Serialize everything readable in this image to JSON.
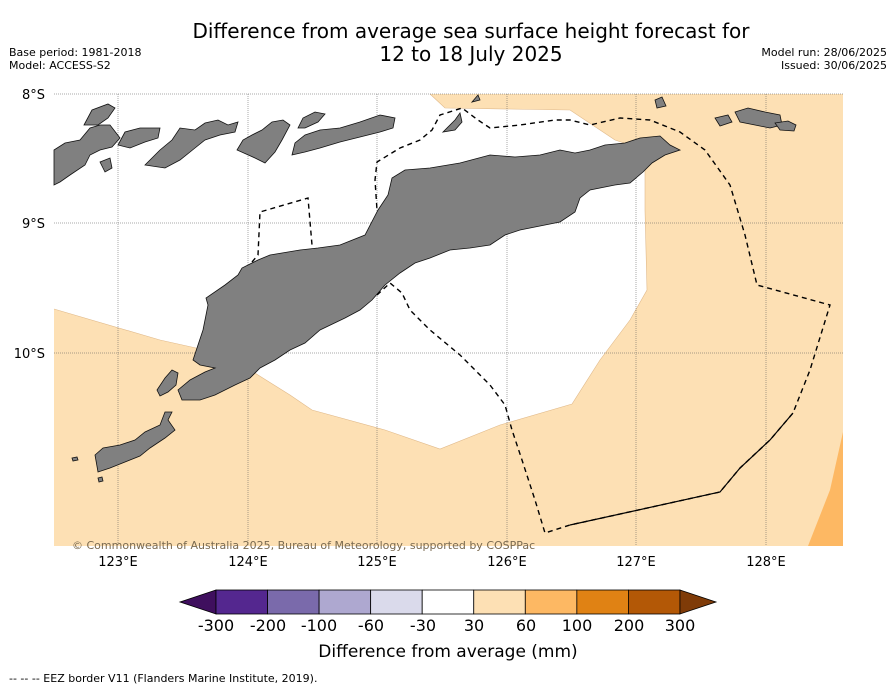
{
  "title_line1": "Difference from average sea surface height forecast for",
  "title_line2": "12 to 18 July 2025",
  "base_period": "Base period: 1981-2018",
  "model": "Model: ACCESS-S2",
  "model_run": "Model run: 28/06/2025",
  "issued": "Issued: 30/06/2025",
  "lat_labels": [
    "8°S",
    "9°S",
    "10°S"
  ],
  "lon_labels": [
    "123°E",
    "124°E",
    "125°E",
    "126°E",
    "127°E",
    "128°E"
  ],
  "copyright": "© Commonwealth of Australia 2025, Bureau of Meteorology, supported by COSPPac",
  "colorbar": {
    "title": "Difference from average (mm)",
    "ticks": [
      "-300",
      "-200",
      "-100",
      "-60",
      "-30",
      "30",
      "60",
      "100",
      "200",
      "300"
    ],
    "colors": [
      "#3f0f5e",
      "#54278f",
      "#7a6aab",
      "#aea8d0",
      "#dadaeb",
      "#ffffff",
      "#fde0b4",
      "#fdb863",
      "#e08214",
      "#b35806",
      "#7f3b08"
    ]
  },
  "footnote": "-- -- -- EEZ border V11 (Flanders Marine Institute, 2019).",
  "map_colors": {
    "land": "#808080",
    "anomaly_30_60": "#fde0b4",
    "anomaly_60_100": "#fdb863",
    "neutral": "#ffffff"
  }
}
